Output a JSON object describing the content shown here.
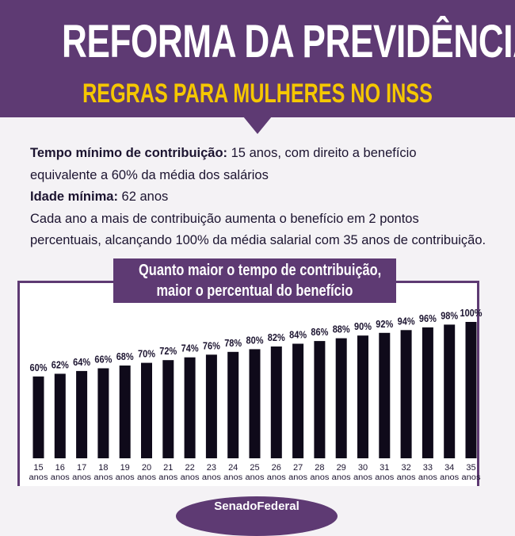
{
  "header": {
    "title": "REFORMA DA PREVIDÊNCIA",
    "subtitle": "REGRAS PARA MULHERES NO INSS"
  },
  "info": {
    "min_contribution_label": "Tempo mínimo de contribuição:",
    "min_contribution_text": " 15 anos, com direito a benefício",
    "min_contribution_text_2": "equivalente a 60% da média dos salários",
    "min_age_label": "Idade mínima:",
    "min_age_text": " 62 anos",
    "increase_line_1": "Cada ano a mais de contribuição aumenta o benefício em 2 pontos",
    "increase_line_2": "percentuais, alcançando 100% da média salarial com 35 anos de contribuição."
  },
  "chart_title": {
    "line1": "Quanto maior o tempo de contribuição,",
    "line2": "maior o percentual do benefício"
  },
  "chart_data": {
    "type": "bar",
    "title": "Quanto maior o tempo de contribuição, maior o percentual do benefício",
    "categories": [
      "15",
      "16",
      "17",
      "18",
      "19",
      "20",
      "21",
      "22",
      "23",
      "24",
      "25",
      "26",
      "27",
      "28",
      "29",
      "30",
      "31",
      "32",
      "33",
      "34",
      "35"
    ],
    "category_unit": "anos",
    "values": [
      60,
      62,
      64,
      66,
      68,
      70,
      72,
      74,
      76,
      78,
      80,
      82,
      84,
      86,
      88,
      90,
      92,
      94,
      96,
      98,
      100
    ],
    "value_labels": [
      "60%",
      "62%",
      "64%",
      "66%",
      "68%",
      "70%",
      "72%",
      "74%",
      "76%",
      "78%",
      "80%",
      "82%",
      "84%",
      "86%",
      "88%",
      "90%",
      "92%",
      "94%",
      "96%",
      "98%",
      "100%"
    ],
    "bar_color": "#0f0a1a",
    "ylim": [
      0,
      100
    ],
    "grid": false,
    "legend": "none"
  },
  "footer": {
    "brand": "SenadoFederal"
  },
  "colors": {
    "primary": "#5e3a73",
    "accent": "#f5c700",
    "background": "#f4f2f5"
  }
}
